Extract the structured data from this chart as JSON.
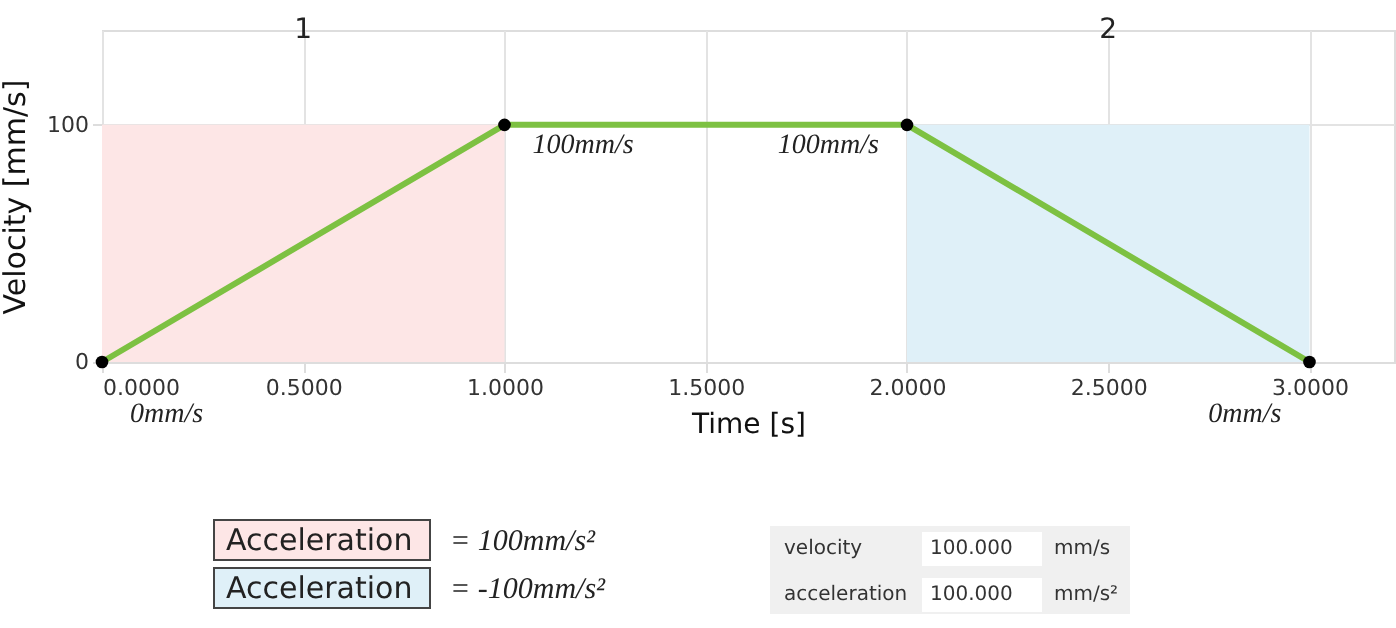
{
  "chart_data": {
    "type": "line",
    "xlabel": "Time [s]",
    "ylabel": "Velocity [mm/s]",
    "xlim": [
      0,
      3.21
    ],
    "ylim": [
      0,
      140
    ],
    "xticks": [
      {
        "value": 0,
        "label": "0.0000"
      },
      {
        "value": 0.5,
        "label": "0.5000"
      },
      {
        "value": 1,
        "label": "1.0000"
      },
      {
        "value": 1.5,
        "label": "1.5000"
      },
      {
        "value": 2,
        "label": "2.0000"
      },
      {
        "value": 2.5,
        "label": "2.5000"
      },
      {
        "value": 3,
        "label": "3.0000"
      }
    ],
    "yticks": [
      0,
      100
    ],
    "grid": true,
    "marker": "circle",
    "line_style": "solid",
    "series": [
      {
        "type": "area",
        "color": "#fde6e6",
        "x": [
          0,
          1
        ],
        "values": [
          100,
          100
        ]
      },
      {
        "type": "area",
        "color": "#dff0f8",
        "x": [
          2,
          3
        ],
        "values": [
          100,
          100
        ]
      },
      {
        "color": "#7dc142",
        "x": [
          0,
          1,
          2,
          3
        ],
        "values": [
          0,
          100,
          100,
          0
        ],
        "value_labels": [
          "0mm/s",
          "100mm/s",
          "100mm/s",
          "0mm/s"
        ]
      }
    ],
    "annotations": [
      "1",
      "2",
      "Acceleration",
      "= 100mm/s²",
      "Acceleration",
      "= -100mm/s²",
      "velocity",
      "100.000",
      "mm/s",
      "acceleration",
      "100.000",
      "mm/s²"
    ]
  }
}
